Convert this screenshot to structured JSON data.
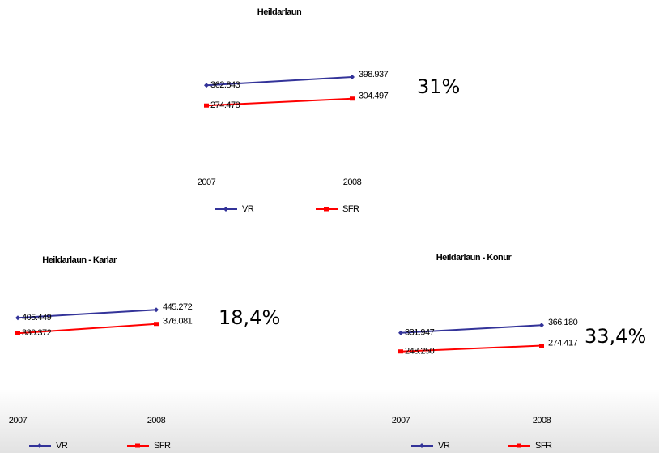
{
  "chart_data": [
    {
      "type": "line",
      "title": "Heildarlaun",
      "categories": [
        "2007",
        "2008"
      ],
      "series": [
        {
          "name": "VR",
          "color": "#333399",
          "marker": "diamond",
          "values": [
            362843,
            398937
          ],
          "value_labels": [
            "362.843",
            "398.937"
          ]
        },
        {
          "name": "SFR",
          "color": "#ff0000",
          "marker": "square",
          "values": [
            274478,
            304497
          ],
          "value_labels": [
            "274.478",
            "304.497"
          ]
        }
      ],
      "annotation": "31%",
      "ylim": [
        0,
        600000
      ],
      "legend": "bottom"
    },
    {
      "type": "line",
      "title": "Heildarlaun - Karlar",
      "categories": [
        "2007",
        "2008"
      ],
      "series": [
        {
          "name": "VR",
          "color": "#333399",
          "marker": "diamond",
          "values": [
            405449,
            445272
          ],
          "value_labels": [
            "405.449",
            "445.272"
          ]
        },
        {
          "name": "SFR",
          "color": "#ff0000",
          "marker": "square",
          "values": [
            330372,
            376081
          ],
          "value_labels": [
            "330.372",
            "376.081"
          ]
        }
      ],
      "annotation": "18,4%",
      "ylim": [
        0,
        600000
      ],
      "legend": "bottom"
    },
    {
      "type": "line",
      "title": "Heildarlaun - Konur",
      "categories": [
        "2007",
        "2008"
      ],
      "series": [
        {
          "name": "VR",
          "color": "#333399",
          "marker": "diamond",
          "values": [
            331947,
            366180
          ],
          "value_labels": [
            "331.947",
            "366.180"
          ]
        },
        {
          "name": "SFR",
          "color": "#ff0000",
          "marker": "square",
          "values": [
            248250,
            274417
          ],
          "value_labels": [
            "248.250",
            "274.417"
          ]
        }
      ],
      "annotation": "33,4%",
      "ylim": [
        0,
        600000
      ],
      "legend": "bottom"
    }
  ]
}
